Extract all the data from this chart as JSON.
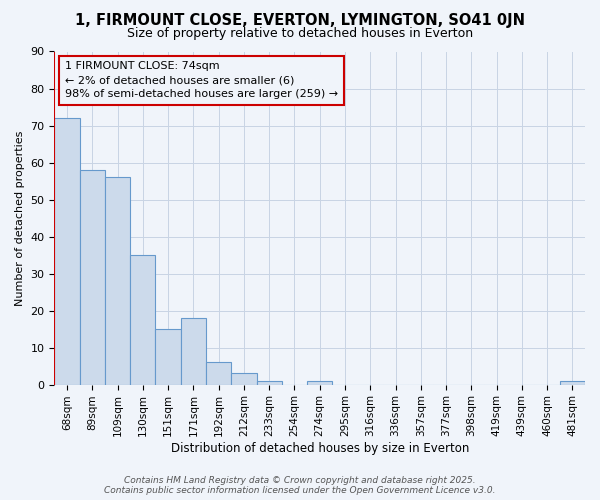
{
  "title1": "1, FIRMOUNT CLOSE, EVERTON, LYMINGTON, SO41 0JN",
  "title2": "Size of property relative to detached houses in Everton",
  "xlabel": "Distribution of detached houses by size in Everton",
  "ylabel": "Number of detached properties",
  "categories": [
    "68sqm",
    "89sqm",
    "109sqm",
    "130sqm",
    "151sqm",
    "171sqm",
    "192sqm",
    "212sqm",
    "233sqm",
    "254sqm",
    "274sqm",
    "295sqm",
    "316sqm",
    "336sqm",
    "357sqm",
    "377sqm",
    "398sqm",
    "419sqm",
    "439sqm",
    "460sqm",
    "481sqm"
  ],
  "values": [
    72,
    58,
    56,
    35,
    15,
    18,
    6,
    3,
    1,
    0,
    1,
    0,
    0,
    0,
    0,
    0,
    0,
    0,
    0,
    0,
    1
  ],
  "bar_color": "#ccdaeb",
  "bar_edge_color": "#6699cc",
  "background_color": "#f0f4fa",
  "grid_color": "#c8d4e4",
  "annotation_line1": "1 FIRMOUNT CLOSE: 74sqm",
  "annotation_line2": "← 2% of detached houses are smaller (6)",
  "annotation_line3": "98% of semi-detached houses are larger (259) →",
  "annotation_box_edge_color": "#cc0000",
  "annotation_box_face_color": "#f0f4fa",
  "footer_text": "Contains HM Land Registry data © Crown copyright and database right 2025.\nContains public sector information licensed under the Open Government Licence v3.0.",
  "ylim": [
    0,
    90
  ],
  "yticks": [
    0,
    10,
    20,
    30,
    40,
    50,
    60,
    70,
    80,
    90
  ],
  "title1_fontsize": 10.5,
  "title2_fontsize": 9,
  "ylabel_fontsize": 8,
  "xlabel_fontsize": 8.5,
  "tick_fontsize": 8,
  "xtick_fontsize": 7.5,
  "annotation_fontsize": 8,
  "footer_fontsize": 6.5
}
